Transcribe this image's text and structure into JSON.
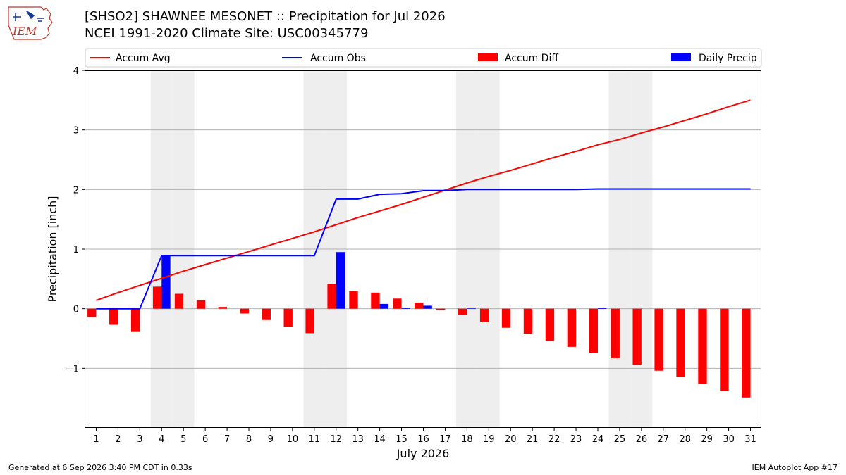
{
  "header": {
    "title_line1": "[SHSO2] SHAWNEE MESONET :: Precipitation for Jul 2026",
    "title_line2": "NCEI 1991-2020 Climate Site: USC00345779"
  },
  "logo": {
    "text": "IEM"
  },
  "footer": {
    "generated": "Generated at 6 Sep 2026 3:40 PM CDT in 0.33s",
    "app": "IEM Autoplot App #17"
  },
  "colors": {
    "avg": "#ff0000",
    "obs": "#0000ff",
    "diff": "#ff0000",
    "daily": "#0000ff",
    "weekend": "#eeeeee",
    "grid": "#b0b0b0"
  },
  "chart_data": {
    "type": "bar",
    "xlabel": "July 2026",
    "ylabel": "Precipitation [inch]",
    "xlim": [
      0.5,
      31.5
    ],
    "ylim": [
      -2,
      4
    ],
    "yticks": [
      -1,
      0,
      1,
      2,
      3,
      4
    ],
    "ytick_labels": [
      "−1",
      "0",
      "1",
      "2",
      "3",
      "4"
    ],
    "grid": "horizontal",
    "legend_placement": "top",
    "legend": [
      "Accum Avg",
      "Accum Obs",
      "Accum Diff",
      "Daily Precip"
    ],
    "days": [
      1,
      2,
      3,
      4,
      5,
      6,
      7,
      8,
      9,
      10,
      11,
      12,
      13,
      14,
      15,
      16,
      17,
      18,
      19,
      20,
      21,
      22,
      23,
      24,
      25,
      26,
      27,
      28,
      29,
      30,
      31
    ],
    "weekend_days": [
      4,
      5,
      11,
      12,
      18,
      19,
      25,
      26
    ],
    "series": [
      {
        "name": "Accum Avg",
        "kind": "line",
        "values": [
          0.14,
          0.27,
          0.39,
          0.51,
          0.63,
          0.74,
          0.85,
          0.96,
          1.07,
          1.18,
          1.29,
          1.41,
          1.53,
          1.64,
          1.75,
          1.87,
          1.99,
          2.11,
          2.22,
          2.32,
          2.43,
          2.54,
          2.64,
          2.75,
          2.84,
          2.95,
          3.05,
          3.16,
          3.27,
          3.39,
          3.5
        ]
      },
      {
        "name": "Accum Obs",
        "kind": "line",
        "values": [
          0.0,
          0.0,
          0.0,
          0.89,
          0.89,
          0.89,
          0.89,
          0.89,
          0.89,
          0.89,
          0.89,
          1.84,
          1.84,
          1.92,
          1.93,
          1.98,
          1.98,
          2.0,
          2.0,
          2.0,
          2.0,
          2.0,
          2.0,
          2.01,
          2.01,
          2.01,
          2.01,
          2.01,
          2.01,
          2.01,
          2.01
        ]
      },
      {
        "name": "Accum Diff",
        "kind": "bar",
        "values": [
          -0.14,
          -0.27,
          -0.39,
          0.37,
          0.25,
          0.14,
          0.03,
          -0.08,
          -0.19,
          -0.3,
          -0.41,
          0.42,
          0.3,
          0.27,
          0.17,
          0.1,
          -0.02,
          -0.11,
          -0.22,
          -0.32,
          -0.42,
          -0.54,
          -0.64,
          -0.74,
          -0.83,
          -0.94,
          -1.04,
          -1.15,
          -1.26,
          -1.38,
          -1.49
        ]
      },
      {
        "name": "Daily Precip",
        "kind": "bar",
        "values": [
          0,
          0,
          0,
          0.89,
          0,
          0,
          0,
          0,
          0,
          0,
          0,
          0.95,
          0,
          0.08,
          0.01,
          0.05,
          0,
          0.02,
          0,
          0,
          0,
          0,
          0,
          0.01,
          0,
          0,
          0,
          0,
          0,
          0,
          0
        ]
      }
    ]
  }
}
